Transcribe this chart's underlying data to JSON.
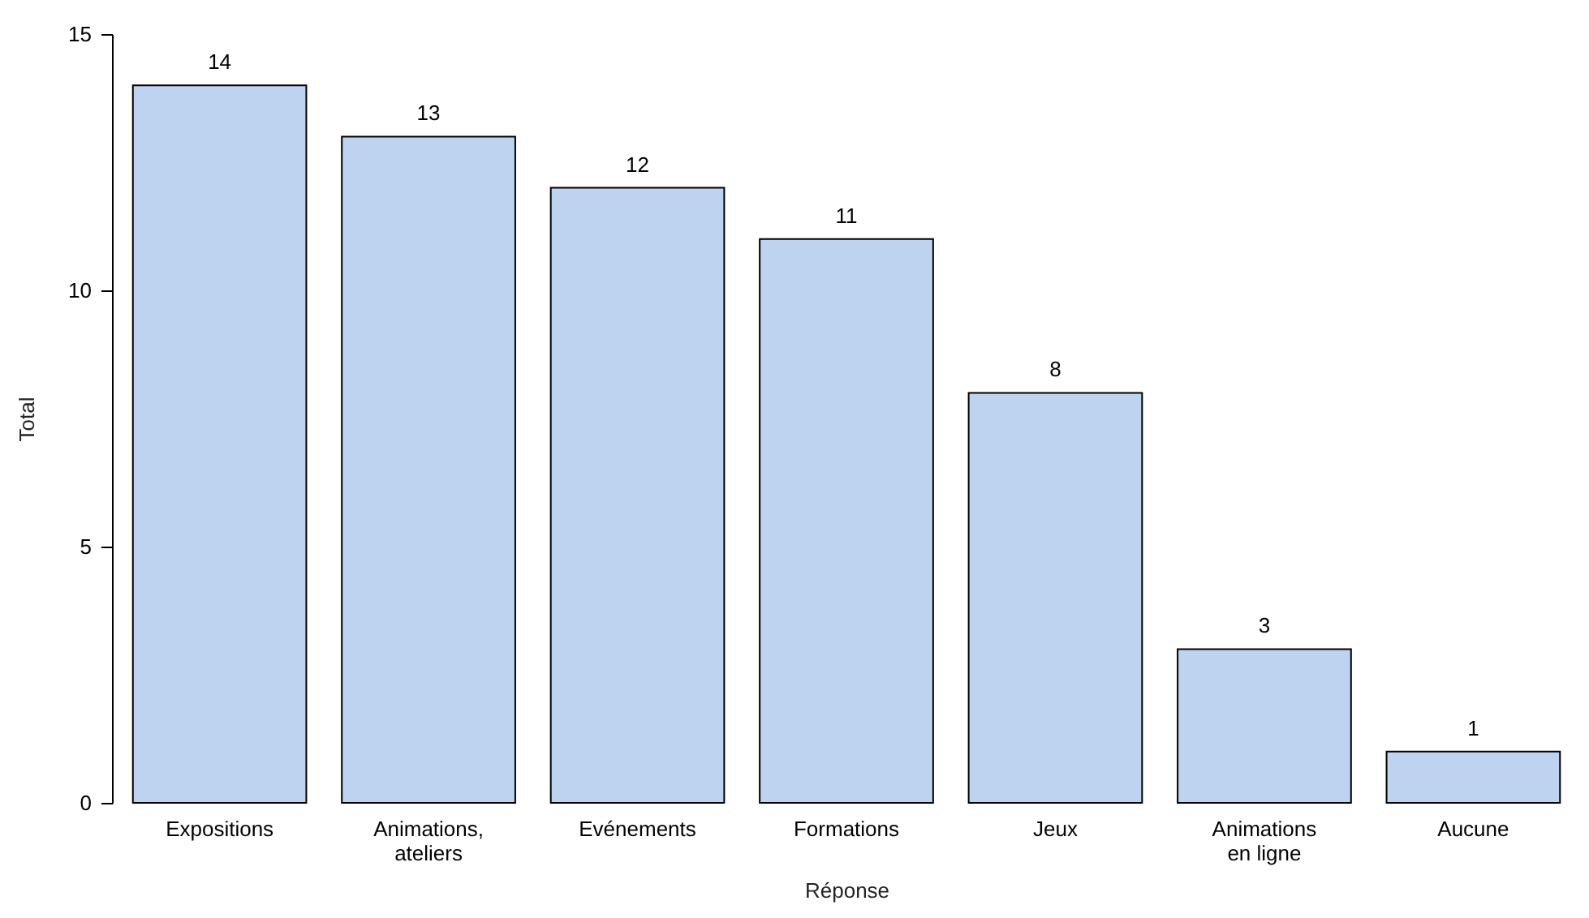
{
  "chart_data": {
    "type": "bar",
    "categories": [
      "Expositions",
      "Animations,\nateliers",
      "Evénements",
      "Formations",
      "Jeux",
      "Animations\nen ligne",
      "Aucune"
    ],
    "values": [
      14,
      13,
      12,
      11,
      8,
      3,
      1
    ],
    "color": "#bdd3f0",
    "xlabel": "Réponse",
    "ylabel": "Total",
    "ylim": [
      0,
      15
    ],
    "yticks": [
      0,
      5,
      10,
      15
    ],
    "data_labels": true,
    "grid": false
  }
}
